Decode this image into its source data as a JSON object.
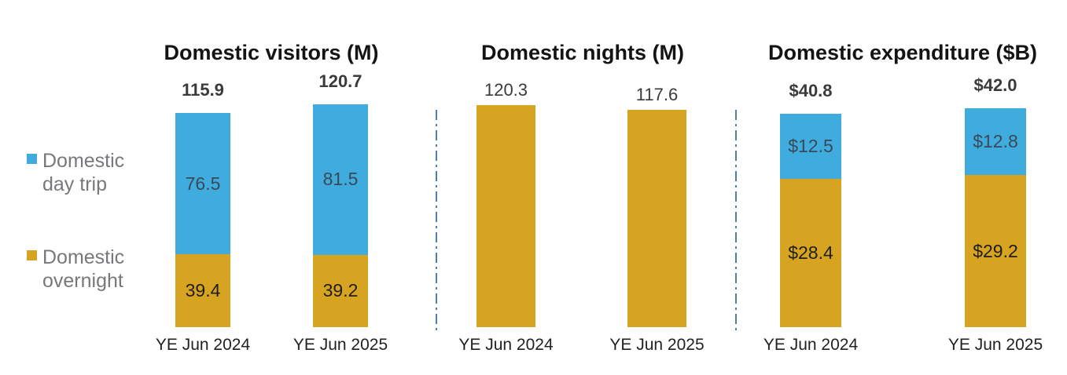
{
  "chart_data": {
    "type": "bar",
    "subtype": "stacked columns in three side-by-side panels, value labels only (no axes/gridlines)",
    "legend_position": "left",
    "grid": false,
    "categories": [
      "YE Jun 2024",
      "YE Jun 2025"
    ],
    "legend": [
      {
        "label": "Domestic day trip",
        "key": "day_trip",
        "color": "#3FACDD"
      },
      {
        "label": "Domestic overnight",
        "key": "overnight",
        "color": "#D6A421"
      }
    ],
    "panels": [
      {
        "title": "Domestic visitors (M)",
        "bars": [
          {
            "category": "YE Jun 2024",
            "total": 115.9,
            "total_label": "115.9",
            "segments": [
              {
                "series": "Domestic day trip",
                "key": "day_trip",
                "value": 76.5,
                "label": "76.5"
              },
              {
                "series": "Domestic overnight",
                "key": "overnight",
                "value": 39.4,
                "label": "39.4"
              }
            ]
          },
          {
            "category": "YE Jun 2025",
            "total": 120.7,
            "total_label": "120.7",
            "segments": [
              {
                "series": "Domestic day trip",
                "key": "day_trip",
                "value": 81.5,
                "label": "81.5"
              },
              {
                "series": "Domestic overnight",
                "key": "overnight",
                "value": 39.2,
                "label": "39.2"
              }
            ]
          }
        ]
      },
      {
        "title": "Domestic nights (M)",
        "bars": [
          {
            "category": "YE Jun 2024",
            "total": 120.3,
            "total_label": "120.3",
            "segments": [
              {
                "series": "Domestic overnight",
                "key": "overnight",
                "value": 120.3,
                "label": ""
              }
            ]
          },
          {
            "category": "YE Jun 2025",
            "total": 117.6,
            "total_label": "117.6",
            "segments": [
              {
                "series": "Domestic overnight",
                "key": "overnight",
                "value": 117.6,
                "label": ""
              }
            ]
          }
        ]
      },
      {
        "title": "Domestic expenditure ($B)",
        "bars": [
          {
            "category": "YE Jun 2024",
            "total": 40.8,
            "total_label": "$40.8",
            "segments": [
              {
                "series": "Domestic day trip",
                "key": "day_trip",
                "value": 12.5,
                "label": "$12.5"
              },
              {
                "series": "Domestic overnight",
                "key": "overnight",
                "value": 28.4,
                "label": "$28.4"
              }
            ]
          },
          {
            "category": "YE Jun 2025",
            "total": 42.0,
            "total_label": "$42.0",
            "segments": [
              {
                "series": "Domestic day trip",
                "key": "day_trip",
                "value": 12.8,
                "label": "$12.8"
              },
              {
                "series": "Domestic overnight",
                "key": "overnight",
                "value": 29.2,
                "label": "$29.2"
              }
            ]
          }
        ]
      }
    ]
  },
  "style": {
    "background": "#FFFFFF",
    "day_trip_color": "#3FACDD",
    "overnight_color": "#D6A421",
    "divider_color": "#4C80A6",
    "title_color": "#141414",
    "total_label_color": "#3A3A3A",
    "axis_label_color": "#222222",
    "legend_text_color": "#77787B",
    "label_on_day_trip_color": "#39495A",
    "label_on_overnight_color": "#1F1E1B"
  }
}
